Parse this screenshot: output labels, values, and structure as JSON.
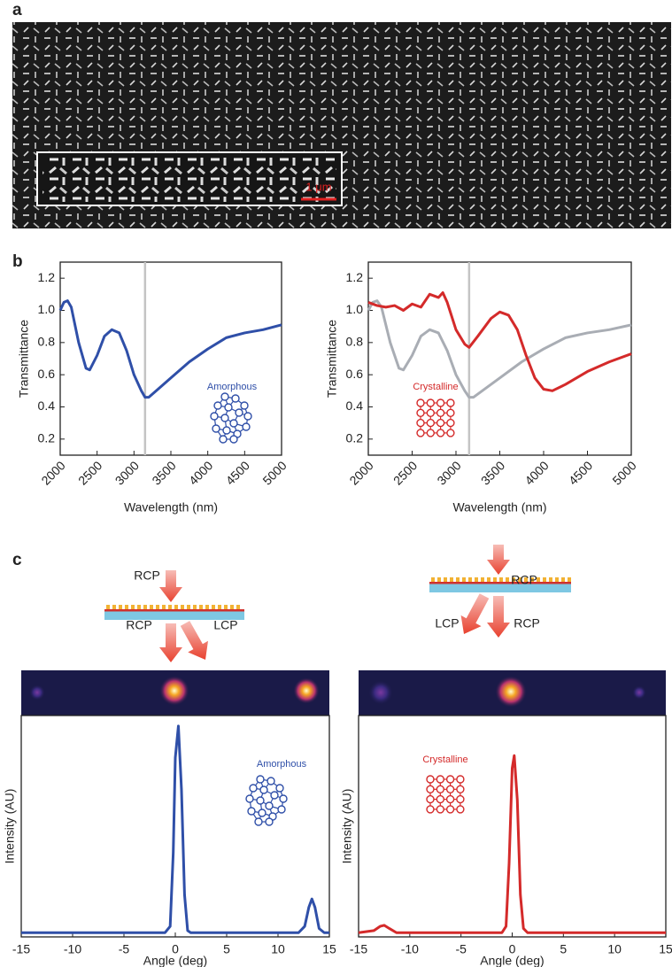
{
  "panels": {
    "a": {
      "label": "a",
      "scale_bar": "1 μm"
    },
    "b": {
      "label": "b"
    },
    "c": {
      "label": "c",
      "diagrams": [
        {
          "incident": "RCP",
          "out_straight": "RCP",
          "out_angled": "LCP"
        },
        {
          "incident": "RCP",
          "out_angled": "LCP",
          "out_straight": "RCP"
        }
      ]
    }
  },
  "chart_data": [
    {
      "type": "line",
      "xlabel": "Wavelength (nm)",
      "ylabel": "Transmittance",
      "xlim": [
        2000,
        5000
      ],
      "ylim": [
        0.1,
        1.3
      ],
      "xticks": [
        2000,
        2500,
        3000,
        3500,
        4000,
        4500,
        5000
      ],
      "yticks": [
        0.2,
        0.4,
        0.6,
        0.8,
        {
          "value": 1,
          "label": "1.0"
        },
        1.2
      ],
      "vline": 3150,
      "x": [
        2000,
        2050,
        2100,
        2150,
        2250,
        2350,
        2400,
        2500,
        2600,
        2700,
        2800,
        2900,
        3000,
        3100,
        3150,
        3200,
        3300,
        3500,
        3750,
        4000,
        4250,
        4500,
        4750,
        5000
      ],
      "series": [
        {
          "name": "Amorphous",
          "color": "#2f4fa8",
          "values": [
            1.0,
            1.05,
            1.06,
            1.02,
            0.8,
            0.64,
            0.63,
            0.72,
            0.84,
            0.88,
            0.86,
            0.75,
            0.6,
            0.5,
            0.46,
            0.46,
            0.5,
            0.58,
            0.68,
            0.76,
            0.83,
            0.86,
            0.88,
            0.91
          ]
        }
      ]
    },
    {
      "type": "line",
      "xlabel": "Wavelength (nm)",
      "ylabel": "Transmittance",
      "xlim": [
        2000,
        5000
      ],
      "ylim": [
        0.1,
        1.3
      ],
      "xticks": [
        2000,
        2500,
        3000,
        3500,
        4000,
        4500,
        5000
      ],
      "yticks": [
        0.2,
        0.4,
        0.6,
        0.8,
        {
          "value": 1,
          "label": "1.0"
        },
        1.2
      ],
      "vline": 3150,
      "x": [
        2000,
        2050,
        2100,
        2150,
        2250,
        2350,
        2400,
        2500,
        2600,
        2700,
        2800,
        2900,
        3000,
        3100,
        3150,
        3200,
        3300,
        3500,
        3750,
        4000,
        4250,
        4500,
        4750,
        5000
      ],
      "series": [
        {
          "color": "#a9adb4",
          "values": [
            1.0,
            1.05,
            1.06,
            1.02,
            0.8,
            0.64,
            0.63,
            0.72,
            0.84,
            0.88,
            0.86,
            0.75,
            0.6,
            0.5,
            0.46,
            0.46,
            0.5,
            0.58,
            0.68,
            0.76,
            0.83,
            0.86,
            0.88,
            0.91
          ]
        },
        {
          "name": "Crystalline",
          "color": "#d42a2a",
          "x": [
            2000,
            2100,
            2200,
            2300,
            2400,
            2500,
            2600,
            2700,
            2800,
            2850,
            2900,
            3000,
            3100,
            3150,
            3250,
            3400,
            3500,
            3600,
            3700,
            3800,
            3900,
            4000,
            4100,
            4250,
            4500,
            4750,
            5000
          ],
          "values": [
            1.05,
            1.03,
            1.02,
            1.03,
            1.0,
            1.04,
            1.02,
            1.1,
            1.08,
            1.11,
            1.05,
            0.88,
            0.79,
            0.77,
            0.84,
            0.95,
            0.99,
            0.97,
            0.88,
            0.72,
            0.58,
            0.51,
            0.5,
            0.54,
            0.62,
            0.68,
            0.73
          ]
        }
      ]
    },
    {
      "type": "line",
      "xlabel": "Angle (deg)",
      "ylabel": "Intensity (AU)",
      "xlim": [
        -15,
        15
      ],
      "ylim": [
        0,
        1.05
      ],
      "xticks": [
        -15,
        -10,
        -5,
        0,
        5,
        10,
        15
      ],
      "x": [
        -15,
        -5,
        -1,
        -0.5,
        -0.2,
        0,
        0.3,
        0.6,
        0.9,
        1.2,
        1.5,
        12,
        12.6,
        13,
        13.3,
        13.6,
        14,
        14.5,
        15
      ],
      "series": [
        {
          "name": "Amorphous",
          "color": "#2f4fa8",
          "values": [
            0.02,
            0.02,
            0.02,
            0.05,
            0.4,
            0.85,
            1.0,
            0.7,
            0.2,
            0.03,
            0.02,
            0.02,
            0.05,
            0.14,
            0.18,
            0.14,
            0.04,
            0.02,
            0.02
          ]
        }
      ]
    },
    {
      "type": "line",
      "xlabel": "Angle (deg)",
      "ylabel": "Intensity (AU)",
      "xlim": [
        -15,
        15
      ],
      "ylim": [
        0,
        1.05
      ],
      "xticks": [
        -15,
        -10,
        -5,
        0,
        5,
        10,
        15
      ],
      "x": [
        -15,
        -13.5,
        -12.9,
        -12.5,
        -12,
        -11.3,
        -1,
        -0.6,
        -0.3,
        0,
        0.2,
        0.5,
        0.8,
        1.1,
        1.5,
        15
      ],
      "series": [
        {
          "name": "Crystalline",
          "color": "#d42a2a",
          "values": [
            0.02,
            0.03,
            0.05,
            0.055,
            0.04,
            0.02,
            0.02,
            0.05,
            0.35,
            0.8,
            0.86,
            0.65,
            0.2,
            0.04,
            0.02,
            0.02
          ]
        }
      ]
    }
  ]
}
